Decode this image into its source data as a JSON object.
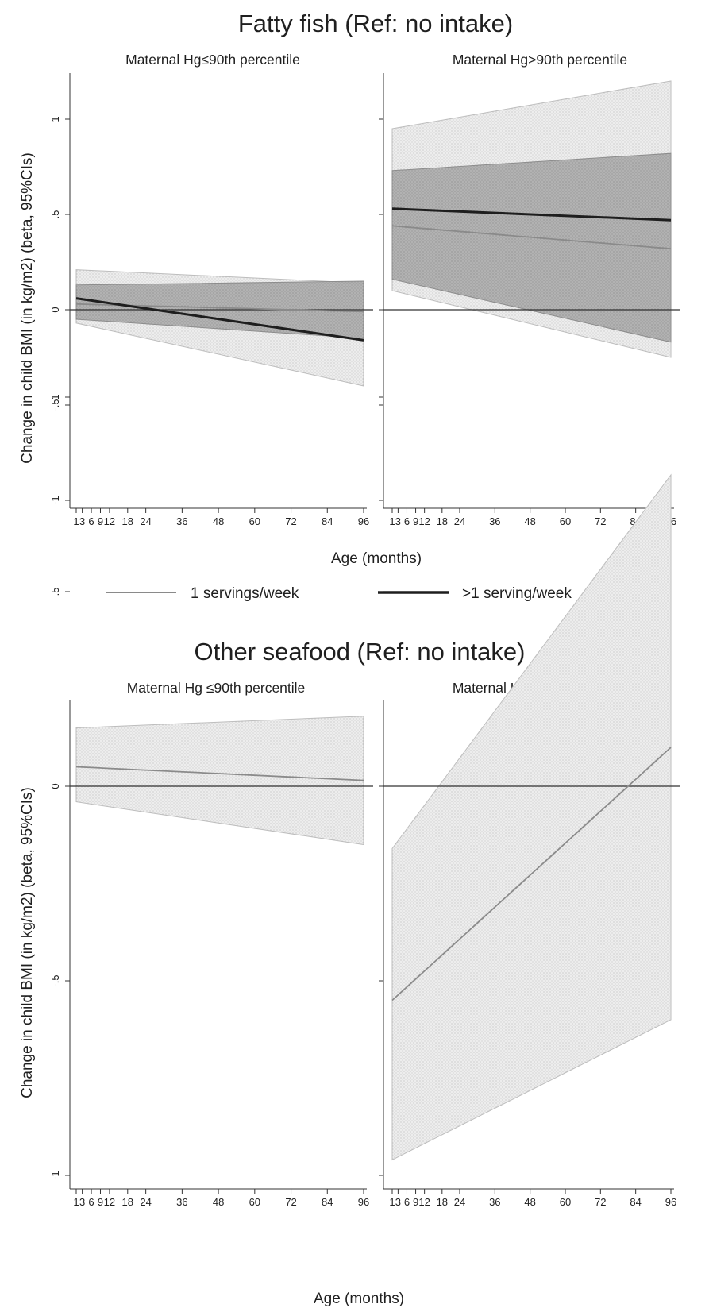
{
  "legend": {
    "items": [
      {
        "label": "1 servings/week",
        "color": "#8a8a8a"
      },
      {
        "label": ">1 serving/week",
        "color": "#1e1e1e"
      }
    ]
  },
  "chart_data": [
    {
      "type": "line",
      "title": "Fatty fish (Ref: no intake)",
      "ylabel": "Change in child BMI (in kg/m2) (beta, 95%CIs)",
      "xlabel": "Age (months)",
      "ylim": [
        -1,
        1.2
      ],
      "yticks": [
        -1,
        -0.5,
        0,
        0.5,
        1
      ],
      "ytick_labels": [
        "-1",
        "-.5",
        "0",
        ".5",
        "1"
      ],
      "xlim": [
        1,
        96
      ],
      "xticks": [
        1,
        3,
        6,
        9,
        12,
        18,
        24,
        36,
        48,
        60,
        72,
        84,
        96
      ],
      "xtick_labels": [
        "1",
        "3",
        "6",
        "9",
        "12",
        "18",
        "24",
        "36",
        "48",
        "60",
        "72",
        "84",
        "96"
      ],
      "reference_line": 0,
      "legend_position": "bottom",
      "panels": [
        {
          "title": "Maternal Hg≤90th percentile",
          "series": [
            {
              "name": "1 servings/week",
              "x": [
                1,
                96
              ],
              "y": [
                0.03,
                -0.01
              ],
              "ci_lower": [
                -0.07,
                -0.4
              ],
              "ci_upper": [
                0.21,
                0.14
              ]
            },
            {
              "name": ">1 serving/week",
              "x": [
                1,
                96
              ],
              "y": [
                0.06,
                -0.16
              ],
              "ci_lower": [
                -0.05,
                -0.15
              ],
              "ci_upper": [
                0.13,
                0.15
              ]
            }
          ]
        },
        {
          "title": "Maternal Hg>90th percentile",
          "series": [
            {
              "name": "1 servings/week",
              "x": [
                1,
                96
              ],
              "y": [
                0.44,
                0.32
              ],
              "ci_lower": [
                0.1,
                -0.25
              ],
              "ci_upper": [
                0.95,
                1.2
              ]
            },
            {
              "name": ">1 serving/week",
              "x": [
                1,
                96
              ],
              "y": [
                0.53,
                0.47
              ],
              "ci_lower": [
                0.16,
                -0.17
              ],
              "ci_upper": [
                0.73,
                0.82
              ]
            }
          ]
        }
      ]
    },
    {
      "type": "line",
      "title": "Other seafood (Ref: no intake)",
      "ylabel": "Change in child BMI (in kg/m2) (beta, 95%CIs)",
      "xlabel": "Age (months)",
      "ylim": [
        -1,
        1
      ],
      "yticks": [
        -1,
        -0.5,
        0,
        0.5,
        1
      ],
      "ytick_labels": [
        "-1",
        "-.5",
        "0",
        ".5",
        "1"
      ],
      "xlim": [
        1,
        96
      ],
      "xticks": [
        1,
        3,
        6,
        9,
        12,
        18,
        24,
        36,
        48,
        60,
        72,
        84,
        96
      ],
      "xtick_labels": [
        "1",
        "3",
        "6",
        "9",
        "12",
        "18",
        "24",
        "36",
        "48",
        "60",
        "72",
        "84",
        "96"
      ],
      "reference_line": 0,
      "panels": [
        {
          "title": "Maternal Hg ≤90th percentile",
          "series": [
            {
              "name": "1 servings/week",
              "x": [
                1,
                96
              ],
              "y": [
                0.05,
                0.015
              ],
              "ci_lower": [
                -0.04,
                -0.15
              ],
              "ci_upper": [
                0.15,
                0.18
              ]
            }
          ]
        },
        {
          "title": "Maternal Hg>90th percentile",
          "series": [
            {
              "name": "1 servings/week",
              "x": [
                1,
                96
              ],
              "y": [
                -0.55,
                0.1
              ],
              "ci_lower": [
                -0.96,
                -0.6
              ],
              "ci_upper": [
                -0.16,
                0.8
              ]
            }
          ]
        }
      ]
    }
  ]
}
